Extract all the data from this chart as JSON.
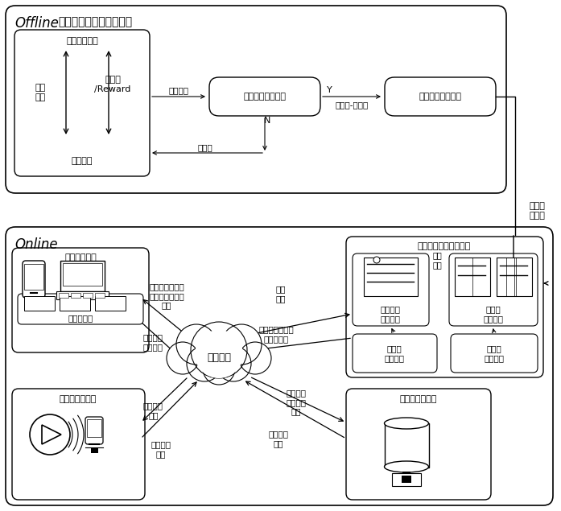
{
  "offline_title_en": "Offline",
  "offline_title_cn": "（模型轻量化处理模块）",
  "online_title": "Online",
  "decision_tree_label": "决策树\n子模型",
  "offline_inner_box_title": "原始模型训练",
  "offline_left_text1": "码率\n决策",
  "offline_left_text2": "状态值\n/Reward",
  "offline_bottom_text": "网络环境",
  "arrow_raw_model": "原始模型",
  "eval_box": "原始模型效果评估",
  "decision_tree_box": "原始模型转决策树",
  "arrow_y_label": "Y",
  "arrow_state_label": "状态値-码率对",
  "arrow_n_label": "N",
  "retrain_label": "再训练",
  "client_player_label": "客户端播放器",
  "player_buffer_label": "播放器缓冲",
  "adaptive_server_label": "自适应码率传输服务器",
  "model_switch_label": "模型\n切换",
  "net_stats_label": "网络均値\n方差统计",
  "adaptive_decision_label": "自适应\n码率决策",
  "client_net_label": "客户端\n网络状况",
  "client_buf_label": "客户端\n缓冲状况",
  "network_label": "传输网络",
  "media_provider_label": "媒体服务提供商",
  "content_storage_label": "内容存储服务器",
  "arrow_resource_label": "资源请求、缓冲\n状况及网络状况\n下发",
  "arrow_bitrate_decision_label": "码率\n决策",
  "arrow_client_status_label": "客户端缓存状况\n及网络状况",
  "arrow_specified_bitrate1_label": "指定码率\n媒体内容",
  "arrow_manifest_label": "清单文件\n下发",
  "arrow_media_request_label": "媒体内容\n请求",
  "arrow_media_get_label": "媒体内容\n获取",
  "arrow_specified_bitrate2_label": "指定码率\n媒体内容\n下发"
}
